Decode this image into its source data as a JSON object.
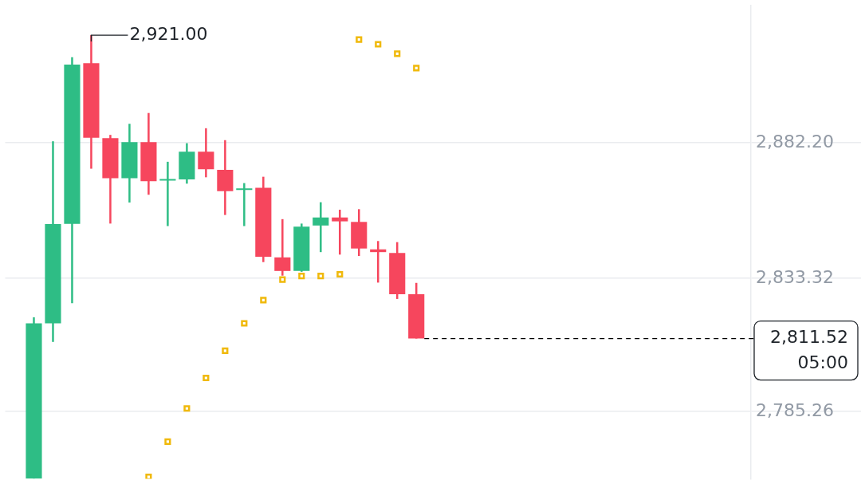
{
  "chart_data": {
    "type": "candlestick",
    "categories": [
      null,
      null,
      null,
      null,
      null,
      null,
      null,
      null,
      null,
      null,
      null,
      null,
      null,
      null,
      null,
      null,
      null,
      null,
      null,
      null,
      null,
      null,
      null,
      null,
      null,
      null,
      null,
      null,
      null,
      null,
      null,
      null,
      null,
      null,
      null,
      null,
      null,
      null,
      null
    ],
    "ohlc": [
      null,
      [
        2761,
        2819.2,
        2761,
        2817.0
      ],
      [
        2817.0,
        2882.7,
        2810.3,
        2852.8
      ],
      [
        2852.9,
        2913.0,
        2824.3,
        2910.4
      ],
      [
        2910.9,
        2921.0,
        2872.8,
        2884.0
      ],
      [
        2883.8,
        2885.0,
        2853.0,
        2869.4
      ],
      [
        2869.4,
        2889.0,
        2860.6,
        2882.4
      ],
      [
        2882.4,
        2892.9,
        2863.4,
        2868.3
      ],
      [
        2868.5,
        2875.3,
        2852.1,
        2868.9
      ],
      [
        2868.9,
        2882.0,
        2867.4,
        2878.9
      ],
      [
        2878.9,
        2887.4,
        2869.7,
        2872.6
      ],
      [
        2872.4,
        2883.1,
        2856.1,
        2864.7
      ],
      [
        2865.1,
        2867.6,
        2852.1,
        2865.6
      ],
      [
        2865.9,
        2869.9,
        2839.1,
        2841.0
      ],
      [
        2840.8,
        2854.6,
        2834.2,
        2835.9
      ],
      [
        2835.9,
        2853.0,
        2835.6,
        2851.9
      ],
      [
        2852.3,
        2860.7,
        2842.7,
        2855.2
      ],
      [
        2855.2,
        2858.0,
        2841.8,
        2853.8
      ],
      [
        2853.6,
        2858.2,
        2841.3,
        2844.0
      ],
      [
        2843.7,
        2846.7,
        2831.7,
        2842.7
      ],
      [
        2842.4,
        2846.3,
        2825.8,
        2827.5
      ],
      [
        2827.5,
        2831.6,
        2811.52,
        2811.52
      ],
      null,
      null,
      null,
      null,
      null,
      null,
      null,
      null,
      null,
      null,
      null,
      null,
      null,
      null,
      null,
      null,
      null
    ],
    "colors": [
      null,
      "#2ebd85",
      "#2ebd85",
      "#2ebd85",
      "#f6465d",
      "#f6465d",
      "#2ebd85",
      "#f6465d",
      "#2ebd85",
      "#2ebd85",
      "#f6465d",
      "#f6465d",
      "#2ebd85",
      "#f6465d",
      "#f6465d",
      "#2ebd85",
      "#2ebd85",
      "#f6465d",
      "#f6465d",
      "#f6465d",
      "#f6465d",
      "#f6465d",
      null,
      null,
      null,
      null,
      null,
      null,
      null,
      null,
      null,
      null,
      null,
      null,
      null,
      null,
      null,
      null,
      null
    ],
    "series": [
      {
        "type": "scatter",
        "marker": "square",
        "color": "#f0b90b",
        "values": [
          null,
          null,
          null,
          null,
          null,
          null,
          null,
          2761.6,
          2774.3,
          2786.3,
          2797.3,
          2807.1,
          2817.0,
          2825.4,
          2832.8,
          2834.1,
          2834.1,
          2834.7,
          2919.4,
          2917.7,
          2914.3,
          2909.1,
          null,
          null,
          null,
          null,
          null,
          null,
          null,
          null,
          null,
          null,
          null,
          null,
          null,
          null,
          null,
          null,
          null
        ]
      }
    ],
    "ylim": [
      2760.9,
      2931.8
    ],
    "yticks": [
      {
        "value": 2785.26,
        "label": "2,785.26"
      },
      {
        "value": 2833.32,
        "label": "2,833.32"
      },
      {
        "value": 2882.2,
        "label": "2,882.20"
      }
    ],
    "grid": "y",
    "legend": false,
    "ref_lines": [
      {
        "axis": "y",
        "value": 2811.52,
        "label": "2,811.52",
        "line_style": "dashed",
        "color": "#000000"
      }
    ],
    "annotations": [
      "2,921.00",
      "05:00"
    ]
  }
}
